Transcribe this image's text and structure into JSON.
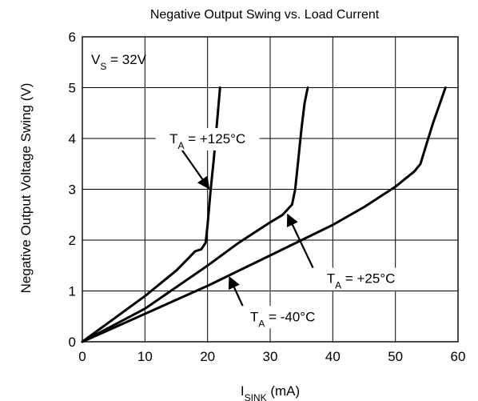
{
  "chart_data": {
    "type": "line",
    "title": "Negative Output Swing vs. Load Current",
    "xlabel": {
      "main": "I",
      "sub": "SINK",
      "rest": " (mA)"
    },
    "ylabel": "Negative Output Voltage Swing (V)",
    "xlim": [
      0,
      60
    ],
    "ylim": [
      0,
      6
    ],
    "xticks": [
      "0",
      "10",
      "20",
      "30",
      "40",
      "50",
      "60"
    ],
    "yticks": [
      "0",
      "1",
      "2",
      "3",
      "4",
      "5",
      "6"
    ],
    "grid": true,
    "condition": {
      "main": "V",
      "sub": "S",
      "rest": " = 32V"
    },
    "series": [
      {
        "name": "T_A = +125°C",
        "label": {
          "main": "T",
          "sub": "A",
          "rest": " = +125°C"
        },
        "points": [
          [
            0,
            0
          ],
          [
            5,
            0.45
          ],
          [
            10,
            0.9
          ],
          [
            15,
            1.4
          ],
          [
            17,
            1.65
          ],
          [
            18,
            1.78
          ],
          [
            19,
            1.82
          ],
          [
            19.7,
            1.95
          ],
          [
            20,
            2.3
          ],
          [
            20.5,
            3
          ],
          [
            21,
            3.6
          ],
          [
            21.5,
            4.3
          ],
          [
            22,
            5
          ]
        ]
      },
      {
        "name": "T_A = +25°C",
        "label": {
          "main": "T",
          "sub": "A",
          "rest": " = +25°C"
        },
        "points": [
          [
            0,
            0
          ],
          [
            10,
            0.65
          ],
          [
            20,
            1.5
          ],
          [
            25,
            1.95
          ],
          [
            30,
            2.35
          ],
          [
            32,
            2.5
          ],
          [
            33.5,
            2.7
          ],
          [
            34,
            3
          ],
          [
            34.5,
            3.6
          ],
          [
            35,
            4.2
          ],
          [
            35.5,
            4.7
          ],
          [
            36,
            5
          ]
        ]
      },
      {
        "name": "T_A = -40°C",
        "label": {
          "main": "T",
          "sub": "A",
          "rest": " = -40°C"
        },
        "points": [
          [
            0,
            0
          ],
          [
            10,
            0.55
          ],
          [
            20,
            1.1
          ],
          [
            25,
            1.4
          ],
          [
            30,
            1.7
          ],
          [
            40,
            2.3
          ],
          [
            45,
            2.65
          ],
          [
            50,
            3.05
          ],
          [
            53,
            3.35
          ],
          [
            54,
            3.5
          ],
          [
            55,
            3.9
          ],
          [
            56,
            4.3
          ],
          [
            57,
            4.65
          ],
          [
            58,
            5
          ]
        ]
      }
    ],
    "annotations": [
      {
        "series": 0,
        "text_at": [
          20.0,
          4.0
        ],
        "arrow_tip": [
          20.2,
          3.02
        ]
      },
      {
        "series": 1,
        "text_at": [
          44.5,
          1.25
        ],
        "arrow_tip": [
          32.8,
          2.5
        ]
      },
      {
        "series": 2,
        "text_at": [
          32.0,
          0.5
        ],
        "arrow_tip": [
          23.5,
          1.27
        ]
      }
    ]
  }
}
